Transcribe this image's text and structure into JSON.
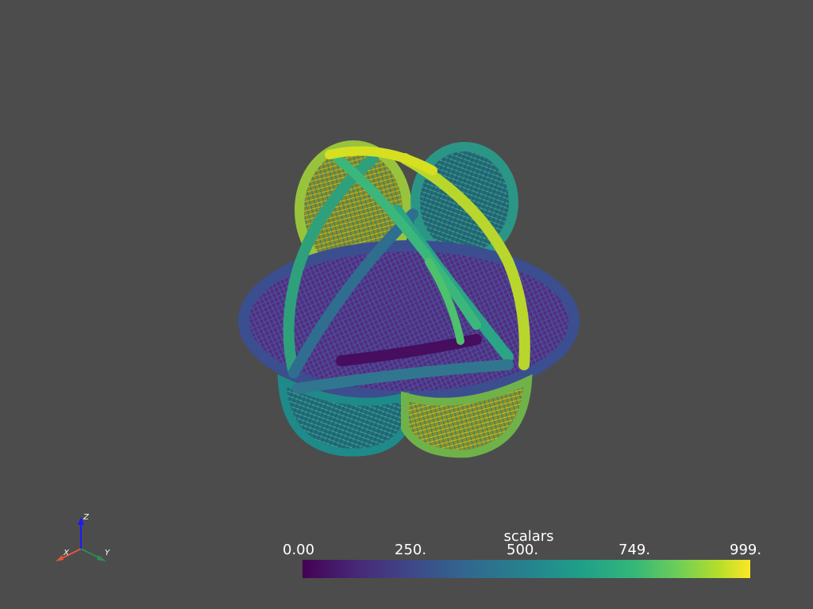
{
  "scalar_bar": {
    "title": "scalars",
    "ticks": [
      "0.00",
      "250.",
      "500.",
      "749.",
      "999."
    ],
    "range": [
      0,
      999
    ],
    "colormap": "viridis"
  },
  "axes": {
    "x_label": "X",
    "y_label": "Y",
    "z_label": "Z",
    "x_color": "#e2573a",
    "y_color": "#2e8b57",
    "z_color": "#1a1aff"
  },
  "background_color": "#4c4c4c"
}
